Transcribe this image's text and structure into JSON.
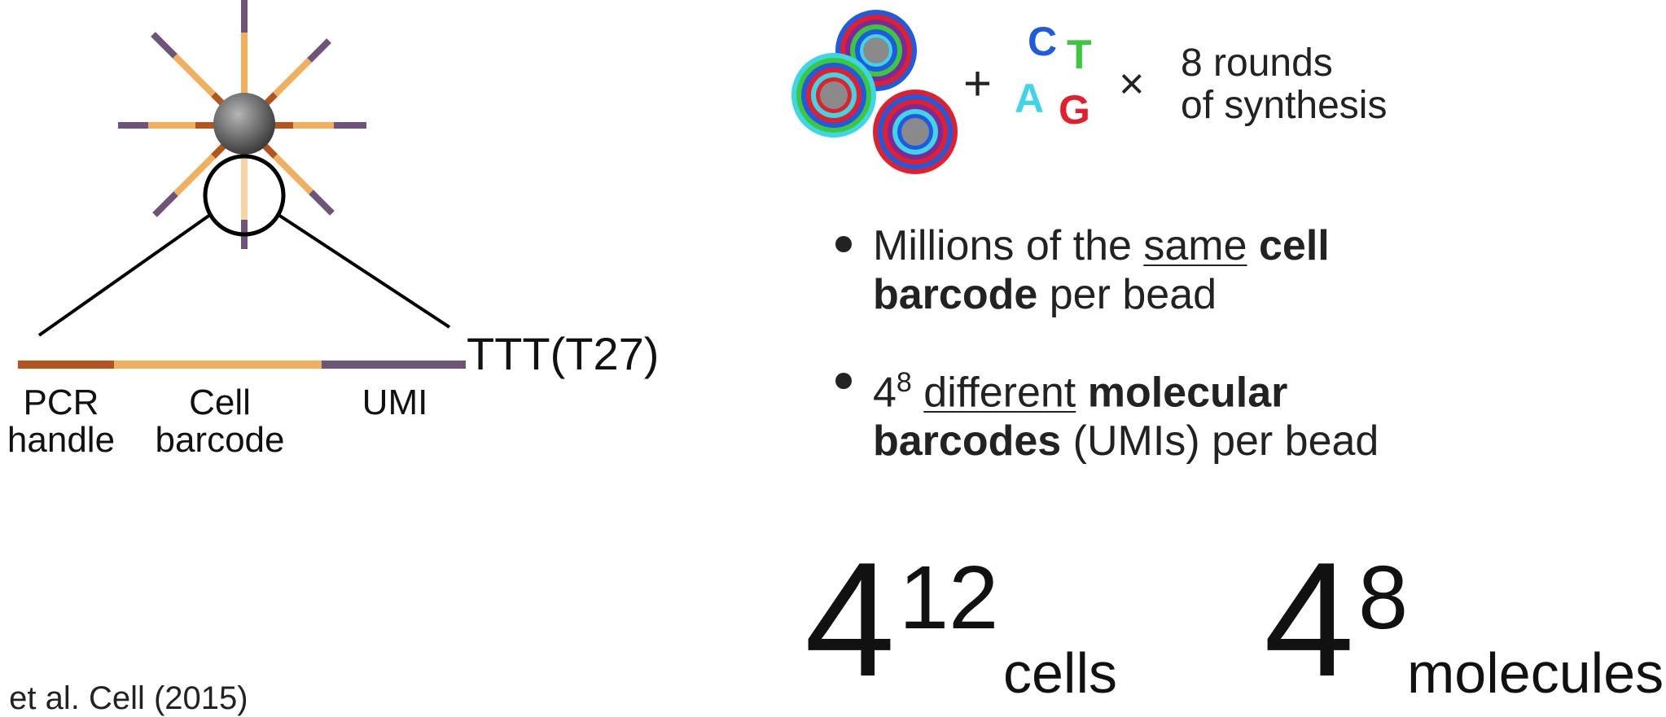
{
  "bead_labels": {
    "segments": [
      "PCR handle",
      "Cell barcode",
      "UMI"
    ],
    "pcr_handle_line1": "PCR",
    "pcr_handle_line2": "handle",
    "cell_barcode_line1": "Cell",
    "cell_barcode_line2": "barcode",
    "umi": "UMI",
    "polyT": "TTT(T27)"
  },
  "synthesis": {
    "plus": "+",
    "nucleotides": {
      "C": "C",
      "T": "T",
      "A": "A",
      "G": "G"
    },
    "times": "×",
    "rounds_line1": "8 rounds",
    "rounds_line2": "of synthesis"
  },
  "bullets": [
    {
      "pre": "Millions of the ",
      "underlined": "same",
      "bold": " cell barcode",
      "post": " per bead"
    },
    {
      "base": "4",
      "exp": "8",
      "underlined": "different",
      "bold": "molecular barcodes",
      "post": " (UMIs) per bead"
    }
  ],
  "totals": [
    {
      "base": "4",
      "exp": "12",
      "unit": "cells"
    },
    {
      "base": "4",
      "exp": "8",
      "unit": "molecules"
    }
  ],
  "citation": "… et al. Cell (2015)",
  "colors": {
    "pcr": "#b5541f",
    "cell": "#f2b05e",
    "umi": "#6e5478",
    "C": "#1f5be0",
    "T": "#3cc83c",
    "A": "#3dd6e6",
    "G": "#e21f2a"
  },
  "icons": [
    "bead-icon",
    "barcode-bead-stack-icon"
  ]
}
